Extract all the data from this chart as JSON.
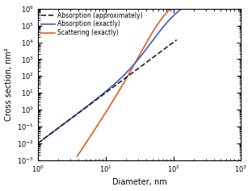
{
  "xlabel": "Diameter, nm",
  "ylabel": "Cross section, nm²",
  "xlim_log": [
    0,
    3
  ],
  "ylim_log": [
    -3,
    6
  ],
  "legend": [
    {
      "label": "Absorption (approximately)",
      "color": "#222222",
      "linestyle": "--",
      "linewidth": 1.2
    },
    {
      "label": "Absorption (exactly)",
      "color": "#3a5bc7",
      "linestyle": "-",
      "linewidth": 1.2
    },
    {
      "label": "Scattering (exactly)",
      "color": "#e05a2b",
      "linestyle": "-",
      "linewidth": 1.2
    }
  ],
  "abs_approx": {
    "d_start_log": 0.0,
    "d_end_log": 2.05,
    "intercept_log": -2.0,
    "slope": 3.0
  },
  "abs_exact": {
    "d_start_log": 0.0,
    "d_end_log": 3.0,
    "intercept_log": -2.0,
    "slope_small": 3.0,
    "transition_d": 55.0,
    "sharpness": 5,
    "slope_large": 2.0,
    "large_intercept_log": 2.0
  },
  "scat_exact": {
    "d_start_log": 0.58,
    "d_end_log": 3.0,
    "intercept_log": -6.27,
    "slope_small": 6.0,
    "transition_d": 60.0,
    "sharpness": 5,
    "slope_large": 2.0,
    "large_scale_log": 2.3
  }
}
